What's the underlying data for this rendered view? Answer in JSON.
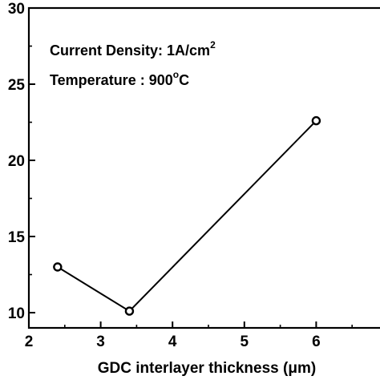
{
  "chart_data": {
    "type": "line",
    "title": "",
    "xlabel": "GDC interlayer thickness (",
    "xlabel_unit": "μm",
    "xlabel_close": ")",
    "ylabel": "",
    "xlim": [
      2,
      7
    ],
    "ylim": [
      9,
      30
    ],
    "x_ticks": [
      2,
      3,
      4,
      5,
      6
    ],
    "y_ticks": [
      10,
      15,
      20,
      25,
      30
    ],
    "grid": false,
    "marker": "open-circle",
    "series": [
      {
        "x": [
          2.4,
          3.4,
          6.0
        ],
        "y": [
          13.0,
          10.1,
          22.6
        ]
      }
    ],
    "annotations": {
      "density_prefix": "Current Density: 1A/cm",
      "density_sup": "2",
      "temperature_prefix": "Temperature : 900",
      "temperature_sup": "o",
      "temperature_suffix": "C"
    },
    "colors": {
      "line": "#000000",
      "marker_fill": "#ffffff",
      "axis": "#000000"
    }
  }
}
